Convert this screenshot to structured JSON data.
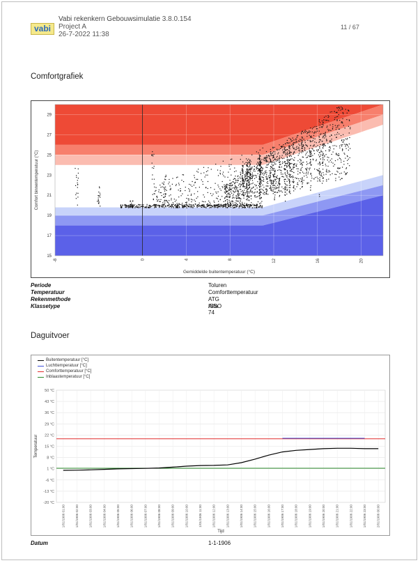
{
  "header": {
    "app_name": "Vabi rekenkern Gebouwsimulatie",
    "version": "3.8.0.154",
    "project": "Project A",
    "datetime": "26-7-2022 11:38",
    "page": "11 / 67",
    "logo_text": "vabi"
  },
  "section1": {
    "title": "Comfortgrafiek",
    "info": [
      {
        "key": "Periode",
        "value": "Toluren"
      },
      {
        "key": "Temperatuur",
        "value": "Comforttemperatuur"
      },
      {
        "key": "Rekenmethode",
        "value": "ATG ISSO 74"
      },
      {
        "key": "Klassetype",
        "value": "Alfa"
      }
    ]
  },
  "section2": {
    "title": "Daguitvoer",
    "footer_key": "Datum",
    "footer_value": "1-1-1906"
  },
  "chart_data": [
    {
      "type": "scatter",
      "xlabel": "Gemiddelde buitentemperatuur (°C)",
      "ylabel": "Comfort binnentemperatuur (°C)",
      "xlim": [
        -8,
        22
      ],
      "ylim": [
        15,
        30
      ],
      "xticks": [
        "-8",
        "0",
        "4",
        "8",
        "12",
        "16",
        "20"
      ],
      "yticks": [
        "15",
        "17",
        "19",
        "21",
        "23",
        "25",
        "27",
        "29"
      ],
      "colors": {
        "upper": [
          "#ee4a36",
          "#f77f6c",
          "#fbbcb0"
        ],
        "lower": [
          "#5b61e8",
          "#8e98f3",
          "#c8d3fa"
        ]
      },
      "points": "cloud of hourly points; dense band near 19.7-20 °C for outdoor -2..11 °C; rising cloud 20-29 °C for outdoor 10-19 °C"
    },
    {
      "type": "line",
      "xlabel": "Tijd",
      "ylabel": "Temperatuur",
      "ylim": [
        -20,
        50
      ],
      "yticks": [
        "50 °C",
        "43 °C",
        "36 °C",
        "29 °C",
        "22 °C",
        "15 °C",
        "8 °C",
        "1 °C",
        "-6 °C",
        "-13 °C",
        "-20 °C"
      ],
      "x": [
        "1/01/1906 01:00",
        "1/01/1906 02:00",
        "1/01/1906 03:00",
        "1/01/1906 04:00",
        "1/01/1906 05:00",
        "1/01/1906 06:00",
        "1/01/1906 07:00",
        "1/01/1906 08:00",
        "1/01/1906 09:00",
        "1/01/1906 10:00",
        "1/01/1906 11:00",
        "1/01/1906 12:00",
        "1/01/1906 13:00",
        "1/01/1906 14:00",
        "1/01/1906 15:00",
        "1/01/1906 16:00",
        "1/01/1906 17:00",
        "1/01/1906 18:00",
        "1/01/1906 19:00",
        "1/01/1906 20:00",
        "1/01/1906 21:00",
        "1/01/1906 22:00",
        "1/01/1906 23:00",
        "2/01/1906 00:00"
      ],
      "series": [
        {
          "name": "Buitentemperatuur [°C]",
          "color": "#000000",
          "values": [
            0,
            0.1,
            0.3,
            0.6,
            0.9,
            1.1,
            1.2,
            1.5,
            2.0,
            2.6,
            3.0,
            3.1,
            3.4,
            4.8,
            7.0,
            9.5,
            11.5,
            12.5,
            13.0,
            13.5,
            13.8,
            13.8,
            13.5,
            13.5
          ]
        },
        {
          "name": "Luchttemperatuur [°C]",
          "color": "#3b4fd8",
          "values": [
            null,
            null,
            null,
            null,
            null,
            null,
            null,
            null,
            null,
            null,
            null,
            null,
            null,
            null,
            null,
            null,
            20.0,
            20.0,
            20.0,
            20.0,
            20.0,
            20.0,
            20.0,
            null
          ]
        },
        {
          "name": "Comforttemperatuur [°C]",
          "color": "#e12b2b",
          "values": [
            19.7,
            19.7,
            19.7,
            19.7,
            19.7,
            19.7,
            19.7,
            19.7,
            19.7,
            19.7,
            19.7,
            19.7,
            19.7,
            19.7,
            19.7,
            19.7,
            19.7,
            19.7,
            19.7,
            19.7,
            19.7,
            19.7,
            19.7,
            19.7
          ]
        },
        {
          "name": "Inblaastemperatuur [°C]",
          "color": "#2a8a2a",
          "values": [
            1.3,
            1.3,
            1.3,
            1.3,
            1.3,
            1.3,
            1.3,
            1.3,
            1.3,
            1.3,
            1.3,
            1.3,
            1.3,
            1.3,
            1.3,
            1.3,
            1.3,
            1.3,
            1.3,
            1.3,
            1.3,
            1.3,
            1.3,
            1.3
          ]
        }
      ]
    }
  ]
}
